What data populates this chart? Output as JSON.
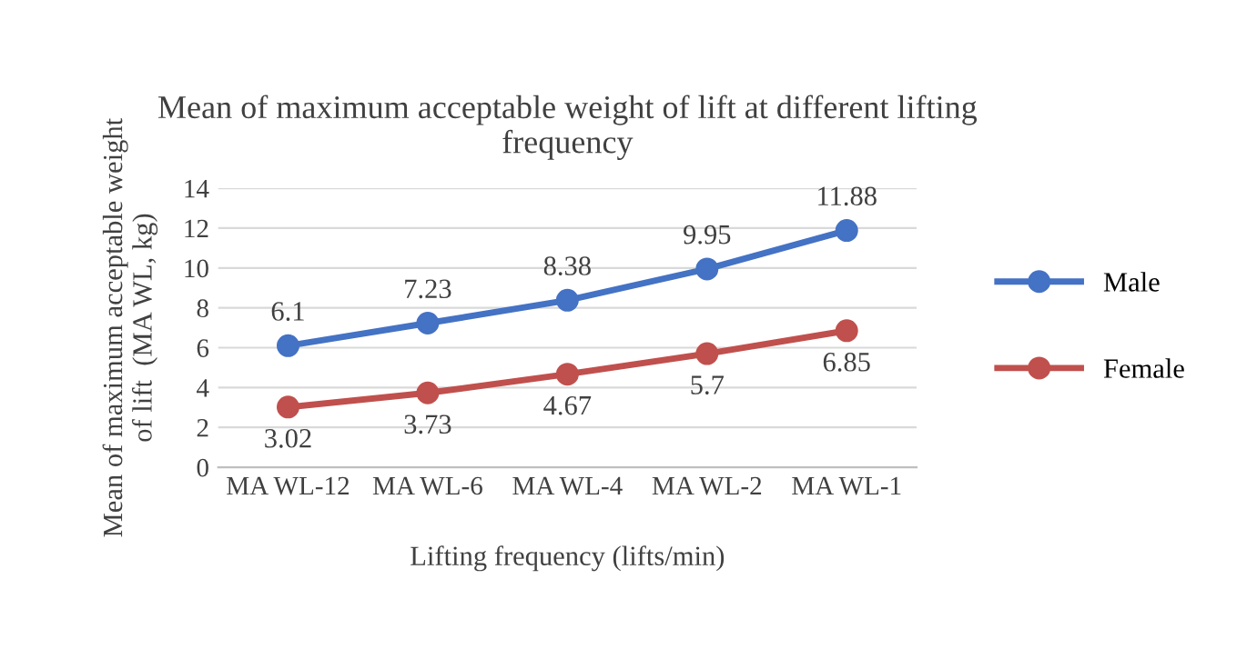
{
  "chart_data": {
    "type": "line",
    "title": "Mean of maximum acceptable weight of lift at different lifting\nfrequency",
    "xlabel": "Lifting frequency (lifts/min)",
    "ylabel": "Mean of maximum acceptable weight\nof lift  (MA WL, kg)",
    "categories": [
      "MA WL-12",
      "MA WL-6",
      "MA WL-4",
      "MA WL-2",
      "MA WL-1"
    ],
    "series": [
      {
        "name": "Male",
        "color": "#4472c4",
        "values": [
          6.1,
          7.23,
          8.38,
          9.95,
          11.88
        ]
      },
      {
        "name": "Female",
        "color": "#c0504d",
        "values": [
          3.02,
          3.73,
          4.67,
          5.7,
          6.85
        ]
      }
    ],
    "ylim": [
      0,
      14
    ],
    "yticks": [
      0,
      2,
      4,
      6,
      8,
      10,
      12,
      14
    ],
    "grid": "y",
    "legend": "right",
    "marker": "circle",
    "data_labels": true
  }
}
